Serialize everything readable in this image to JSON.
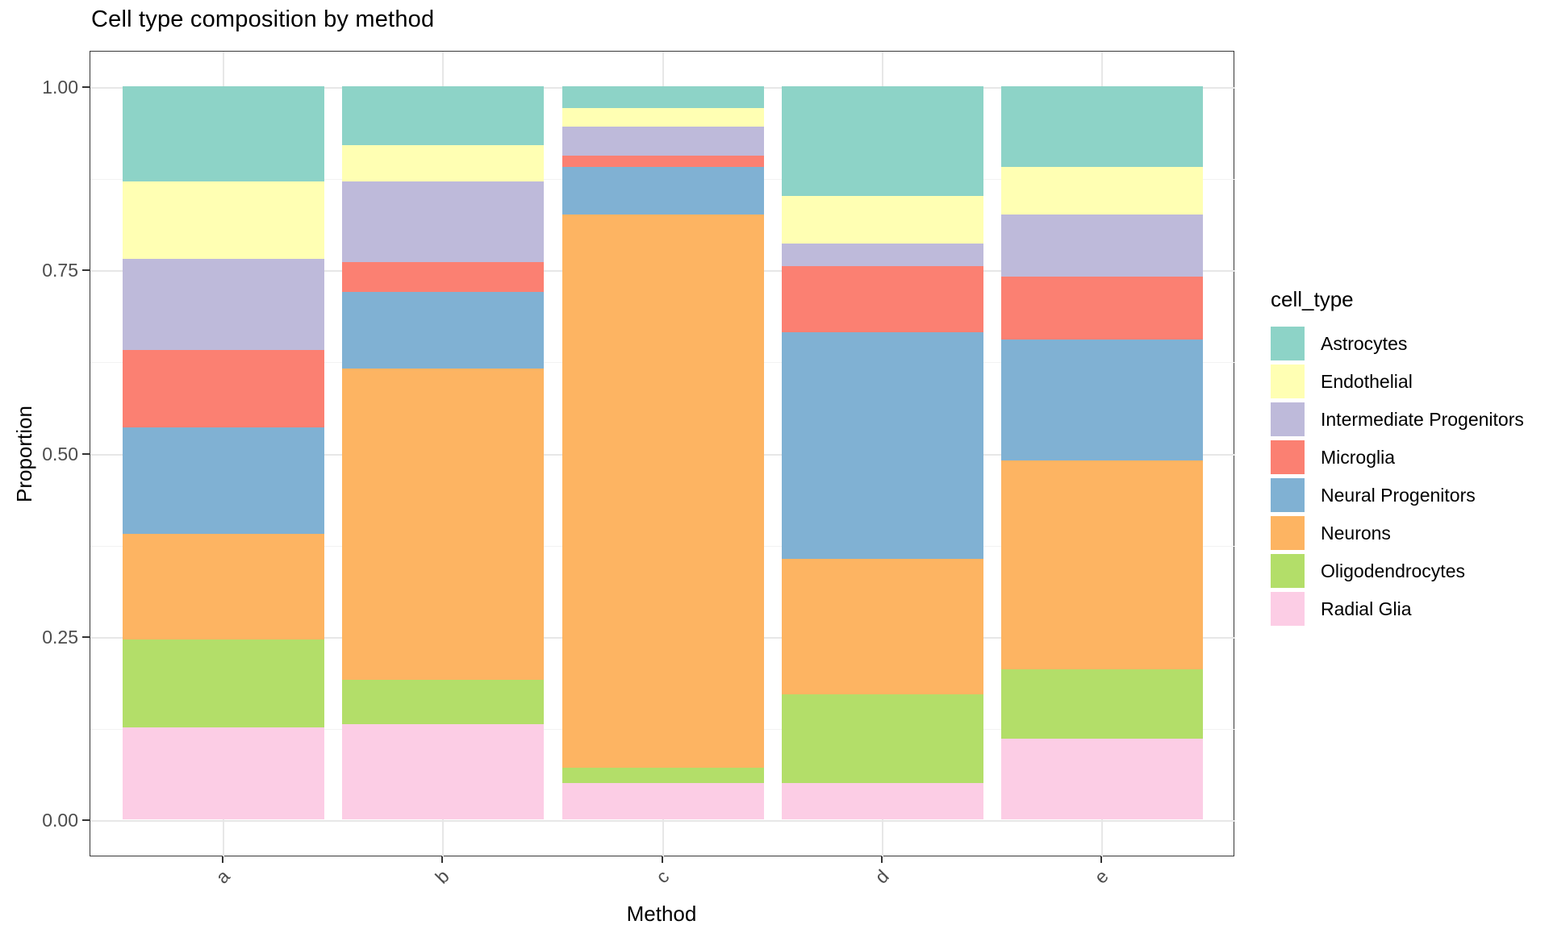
{
  "chart_data": {
    "type": "bar",
    "stacked": true,
    "title": "Cell type composition by method",
    "xlabel": "Method",
    "ylabel": "Proportion",
    "legend_title": "cell_type",
    "legend_position": "right",
    "grid": true,
    "categories": [
      "a",
      "b",
      "c",
      "d",
      "e"
    ],
    "ylim": [
      0,
      1
    ],
    "y_ticks": [
      {
        "label": "0.00",
        "value": 0
      },
      {
        "label": "0.25",
        "value": 0.25
      },
      {
        "label": "0.50",
        "value": 0.5
      },
      {
        "label": "0.75",
        "value": 0.75
      },
      {
        "label": "1.00",
        "value": 1
      }
    ],
    "y_minor_gridlines": [
      0.125,
      0.375,
      0.625,
      0.875
    ],
    "stack_order_bottom_to_top": [
      "Radial Glia",
      "Oligodendrocytes",
      "Neurons",
      "Neural Progenitors",
      "Microglia",
      "Intermediate Progenitors",
      "Endothelial",
      "Astrocytes"
    ],
    "series": [
      {
        "name": "Astrocytes",
        "color": "#8DD3C7",
        "values": [
          0.13,
          0.08,
          0.03,
          0.15,
          0.11
        ]
      },
      {
        "name": "Endothelial",
        "color": "#FFFFB3",
        "values": [
          0.105,
          0.05,
          0.025,
          0.065,
          0.065
        ]
      },
      {
        "name": "Intermediate Progenitors",
        "color": "#BEBADA",
        "values": [
          0.125,
          0.11,
          0.04,
          0.03,
          0.085
        ]
      },
      {
        "name": "Microglia",
        "color": "#FB8072",
        "values": [
          0.105,
          0.04,
          0.015,
          0.09,
          0.085
        ]
      },
      {
        "name": "Neural Progenitors",
        "color": "#80B1D3",
        "values": [
          0.145,
          0.105,
          0.065,
          0.31,
          0.165
        ]
      },
      {
        "name": "Neurons",
        "color": "#FDB462",
        "values": [
          0.145,
          0.425,
          0.755,
          0.185,
          0.285
        ]
      },
      {
        "name": "Oligodendrocytes",
        "color": "#B3DE69",
        "values": [
          0.12,
          0.06,
          0.02,
          0.12,
          0.095
        ]
      },
      {
        "name": "Radial Glia",
        "color": "#FCCDE5",
        "values": [
          0.125,
          0.13,
          0.05,
          0.05,
          0.11
        ]
      }
    ]
  }
}
